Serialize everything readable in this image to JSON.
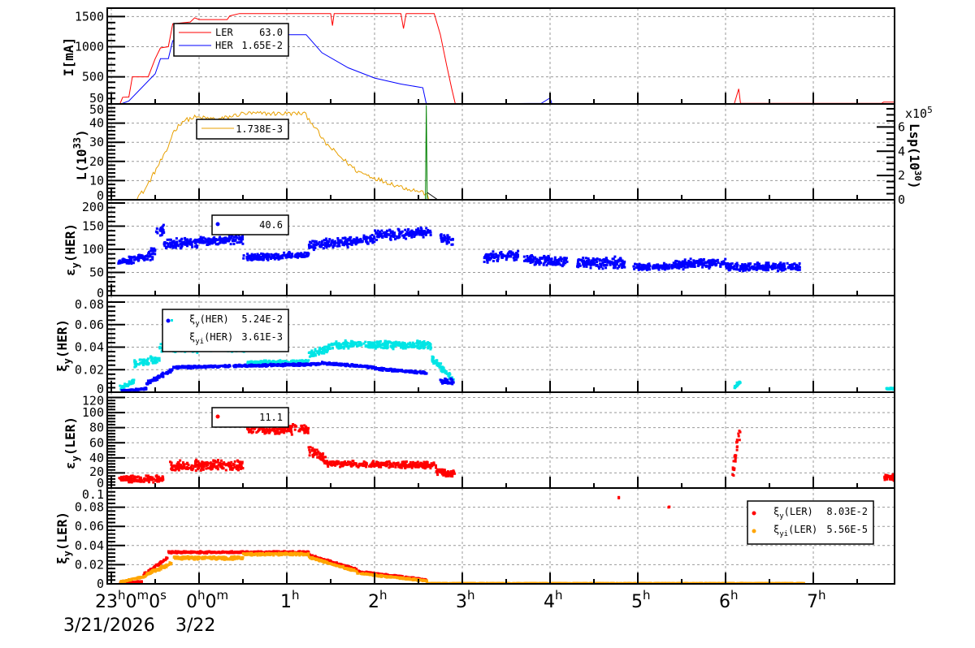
{
  "chart_data": {
    "type": "line",
    "xunit": "hours relative to 3/22 0h",
    "xlim": [
      -0.94,
      7.93
    ],
    "xticks": [
      -1,
      0,
      1,
      2,
      3,
      4,
      5,
      6,
      7
    ],
    "xlabels": {
      "start": "23",
      "start_h": "h",
      "start_mid": "0",
      "start_m": "m",
      "start_end": "0",
      "start_s": "s",
      "zero": "0",
      "zero_h": "h",
      "zero_mid": "0",
      "zero_m": "m",
      "hours": [
        "1",
        "2",
        "3",
        "4",
        "5",
        "6",
        "7"
      ],
      "h": "h",
      "date1": "3/21/2026",
      "date2": "3/22"
    },
    "panels": [
      {
        "id": "current",
        "ylabel": "I[mA]",
        "ylim": [
          50,
          1640
        ],
        "yticks": [
          50,
          500,
          1000,
          1500
        ],
        "legend": [
          {
            "name": "LER",
            "value": "63.0",
            "color": "#ff0000"
          },
          {
            "name": "HER",
            "value": "1.65E-2",
            "color": "#0000ff"
          }
        ],
        "series": [
          {
            "name": "LER",
            "kind": "line",
            "color": "#ff0000",
            "points": [
              [
                -0.9,
                55
              ],
              [
                -0.87,
                160
              ],
              [
                -0.8,
                165
              ],
              [
                -0.76,
                500
              ],
              [
                -0.58,
                500
              ],
              [
                -0.5,
                800
              ],
              [
                -0.44,
                980
              ],
              [
                -0.35,
                1000
              ],
              [
                -0.3,
                1380
              ],
              [
                -0.1,
                1410
              ],
              [
                -0.05,
                1480
              ],
              [
                0,
                1450
              ],
              [
                0.32,
                1450
              ],
              [
                0.35,
                1510
              ],
              [
                0.46,
                1550
              ],
              [
                1.5,
                1550
              ],
              [
                1.52,
                1350
              ],
              [
                1.54,
                1550
              ],
              [
                2.3,
                1550
              ],
              [
                2.33,
                1300
              ],
              [
                2.36,
                1550
              ],
              [
                2.68,
                1550
              ],
              [
                2.75,
                1200
              ],
              [
                2.82,
                700
              ],
              [
                2.88,
                300
              ],
              [
                2.92,
                50
              ],
              [
                6.1,
                55
              ],
              [
                6.15,
                300
              ],
              [
                6.17,
                60
              ],
              [
                7.78,
                60
              ],
              [
                7.8,
                80
              ],
              [
                7.93,
                80
              ]
            ]
          },
          {
            "name": "HER",
            "kind": "line",
            "color": "#0000ff",
            "points": [
              [
                -0.88,
                55
              ],
              [
                -0.8,
                100
              ],
              [
                -0.5,
                550
              ],
              [
                -0.44,
                800
              ],
              [
                -0.35,
                800
              ],
              [
                -0.3,
                1100
              ],
              [
                -0.14,
                1100
              ],
              [
                -0.1,
                1200
              ],
              [
                1.22,
                1200
              ],
              [
                1.4,
                900
              ],
              [
                1.7,
                650
              ],
              [
                2.0,
                480
              ],
              [
                2.3,
                380
              ],
              [
                2.55,
                320
              ],
              [
                2.59,
                50
              ],
              [
                3.9,
                60
              ],
              [
                4.0,
                150
              ],
              [
                4.02,
                55
              ],
              [
                7.93,
                55
              ]
            ]
          }
        ]
      },
      {
        "id": "luminosity",
        "ylabel": "L(10",
        "ylabel_sup": "33",
        "ylabel_end": ")",
        "ylim": [
          0,
          50
        ],
        "yticks": [
          0,
          10,
          20,
          30,
          40,
          50
        ],
        "right_axis": {
          "label": "Lsp(10",
          "label_sup": "30",
          "label_end": ")",
          "scale": "x10",
          "scale_sup": "5",
          "ylim": [
            0,
            7.9
          ],
          "yticks": [
            0,
            2,
            4,
            6
          ]
        },
        "legend": [
          {
            "name": "",
            "value": "1.738E-3",
            "color": "#e8a000"
          }
        ],
        "series": [
          {
            "name": "L",
            "kind": "line",
            "color": "#e8a000",
            "noise": 1.2,
            "points": [
              [
                -0.94,
                0
              ],
              [
                -0.74,
                0
              ],
              [
                -0.62,
                5
              ],
              [
                -0.44,
                20
              ],
              [
                -0.37,
                25
              ],
              [
                -0.3,
                35
              ],
              [
                -0.19,
                41
              ],
              [
                -0.05,
                43
              ],
              [
                0.23,
                42
              ],
              [
                0.5,
                45
              ],
              [
                1.2,
                45
              ],
              [
                1.29,
                40
              ],
              [
                1.43,
                30
              ],
              [
                1.62,
                22
              ],
              [
                1.8,
                15
              ],
              [
                2.08,
                10
              ],
              [
                2.36,
                6
              ],
              [
                2.55,
                4
              ],
              [
                2.65,
                0
              ],
              [
                5.32,
                0
              ]
            ]
          },
          {
            "name": "Lsp",
            "kind": "line",
            "color": "#008000",
            "axis": "right",
            "points": [
              [
                2.58,
                0
              ],
              [
                2.59,
                7.8
              ],
              [
                2.6,
                0
              ]
            ]
          },
          {
            "name": "Lsp-decay",
            "kind": "line",
            "color": "#000000",
            "axis": "right",
            "points": [
              [
                2.6,
                0.6
              ],
              [
                2.72,
                0
              ]
            ]
          }
        ]
      },
      {
        "id": "emit-her",
        "ylabel": "ε",
        "ylabel_sub": "y",
        "ylabel_end": "(HER)",
        "ylim": [
          0,
          207
        ],
        "yticks": [
          0,
          50,
          100,
          150,
          200
        ],
        "legend": [
          {
            "name": "",
            "value": "40.6",
            "color": "#0000ff"
          }
        ],
        "series": [
          {
            "name": "εy(HER)",
            "kind": "scatter",
            "color": "#0000ff",
            "bands": [
              [
                -0.92,
                -0.6,
                70,
                85,
                10
              ],
              [
                -0.6,
                -0.5,
                85,
                95,
                15
              ],
              [
                -0.5,
                -0.4,
                140,
                140,
                15
              ],
              [
                -0.4,
                0,
                110,
                115,
                12
              ],
              [
                0,
                0.5,
                118,
                122,
                12
              ],
              [
                0.5,
                1.25,
                82,
                88,
                8
              ],
              [
                1.25,
                2.0,
                108,
                122,
                12
              ],
              [
                2.0,
                2.65,
                130,
                138,
                12
              ],
              [
                2.75,
                2.9,
                125,
                120,
                15
              ],
              [
                3.25,
                3.65,
                82,
                88,
                12
              ],
              [
                3.7,
                4.2,
                78,
                72,
                12
              ],
              [
                4.3,
                4.85,
                72,
                70,
                14
              ],
              [
                4.95,
                5.4,
                62,
                62,
                8
              ],
              [
                5.4,
                6.0,
                68,
                70,
                12
              ],
              [
                6.0,
                6.85,
                62,
                62,
                10
              ]
            ]
          }
        ]
      },
      {
        "id": "tune-her",
        "ylabel": "ξ",
        "ylabel_sub": "y",
        "ylabel_end": "(HER)",
        "ylim": [
          0,
          0.0858
        ],
        "yticks": [
          0,
          0.02,
          0.04,
          0.06,
          0.08
        ],
        "legend": [
          {
            "name": "ξ",
            "sub": "y",
            "tail": "(HER)",
            "value": "5.24E-2",
            "color": "#0000ff"
          },
          {
            "name": "ξ",
            "sub": "yi",
            "tail": "(HER)",
            "value": "3.61E-3",
            "color": "#00e5e5"
          }
        ],
        "series": [
          {
            "name": "ξyi(HER)",
            "kind": "scatter",
            "color": "#00e5e5",
            "bands": [
              [
                -0.9,
                -0.74,
                0.003,
                0.01,
                0.003
              ],
              [
                -0.74,
                -0.45,
                0.025,
                0.03,
                0.004
              ],
              [
                -0.45,
                0.55,
                0.04,
                0.04,
                0.005
              ],
              [
                0.55,
                1.25,
                0.026,
                0.027,
                0.002
              ],
              [
                1.25,
                1.5,
                0.033,
                0.04,
                0.004
              ],
              [
                1.5,
                2.65,
                0.042,
                0.042,
                0.004
              ],
              [
                2.65,
                2.9,
                0.03,
                0.012,
                0.004
              ],
              [
                6.1,
                6.17,
                0.004,
                0.01,
                0.002
              ],
              [
                7.82,
                7.93,
                0.003,
                0.003,
                0.001
              ]
            ]
          },
          {
            "name": "ξy(HER)",
            "kind": "scatter",
            "color": "#0000ff",
            "bands": [
              [
                -0.88,
                -0.6,
                0.001,
                0.003,
                0.001
              ],
              [
                -0.6,
                -0.3,
                0.008,
                0.02,
                0.002
              ],
              [
                -0.3,
                1.4,
                0.022,
                0.025,
                0.0012
              ],
              [
                1.4,
                2.0,
                0.026,
                0.022,
                0.0012
              ],
              [
                2.0,
                2.6,
                0.021,
                0.017,
                0.0012
              ],
              [
                2.75,
                2.9,
                0.01,
                0.01,
                0.003
              ]
            ]
          }
        ]
      },
      {
        "id": "emit-ler",
        "ylabel": "ε",
        "ylabel_sub": "y",
        "ylabel_end": "(LER)",
        "ylim": [
          0,
          127
        ],
        "yticks": [
          0,
          20,
          40,
          60,
          80,
          100,
          120
        ],
        "legend": [
          {
            "name": "",
            "value": "11.1",
            "color": "#ff0000"
          }
        ],
        "series": [
          {
            "name": "εy(LER)",
            "kind": "scatter",
            "color": "#ff0000",
            "bands": [
              [
                -0.92,
                -0.4,
                12,
                12,
                5
              ],
              [
                -0.35,
                0.5,
                30,
                30,
                8
              ],
              [
                0.55,
                1.25,
                80,
                78,
                8
              ],
              [
                1.25,
                1.45,
                50,
                38,
                8
              ],
              [
                1.45,
                2.7,
                32,
                30,
                5
              ],
              [
                2.7,
                2.92,
                22,
                18,
                5
              ],
              [
                6.08,
                6.18,
                20,
                90,
                15
              ],
              [
                7.8,
                7.93,
                15,
                15,
                6
              ]
            ]
          }
        ]
      },
      {
        "id": "tune-ler",
        "ylabel": "ξ",
        "ylabel_sub": "y",
        "ylabel_end": "(LER)",
        "ylim": [
          0,
          0.1
        ],
        "yticks": [
          0,
          0.02,
          0.04,
          0.06,
          0.08,
          0.1
        ],
        "legend": [
          {
            "name": "ξ",
            "sub": "y",
            "tail": "(LER)",
            "value": "8.03E-2",
            "color": "#ff0000"
          },
          {
            "name": "ξ",
            "sub": "yi",
            "tail": "(LER)",
            "value": "5.56E-5",
            "color": "#ffa500"
          }
        ],
        "series": [
          {
            "name": "ξy(LER)",
            "kind": "scatter",
            "color": "#ff0000",
            "bands": [
              [
                -0.9,
                -0.65,
                0.001,
                0.002,
                0.001
              ],
              [
                -0.65,
                -0.35,
                0.008,
                0.028,
                0.002
              ],
              [
                -0.35,
                1.25,
                0.033,
                0.033,
                0.0012
              ],
              [
                1.25,
                1.8,
                0.03,
                0.015,
                0.0012
              ],
              [
                1.8,
                2.6,
                0.013,
                0.004,
                0.001
              ],
              [
                4.78,
                4.79,
                0.095,
                0.08,
                0.001
              ],
              [
                5.35,
                5.36,
                0.08,
                0.08,
                0.0005
              ]
            ]
          },
          {
            "name": "ξyi(LER)",
            "kind": "scatter",
            "color": "#ffa500",
            "bands": [
              [
                -0.9,
                -0.6,
                0.002,
                0.008,
                0.001
              ],
              [
                -0.6,
                -0.3,
                0.01,
                0.022,
                0.002
              ],
              [
                -0.3,
                0.5,
                0.027,
                0.027,
                0.002
              ],
              [
                0.5,
                1.25,
                0.031,
                0.031,
                0.0015
              ],
              [
                1.25,
                1.8,
                0.028,
                0.013,
                0.0012
              ],
              [
                1.8,
                2.6,
                0.011,
                0.003,
                0.001
              ],
              [
                2.6,
                6.9,
                0.0005,
                0.0005,
                0.0004
              ]
            ]
          }
        ]
      }
    ]
  }
}
